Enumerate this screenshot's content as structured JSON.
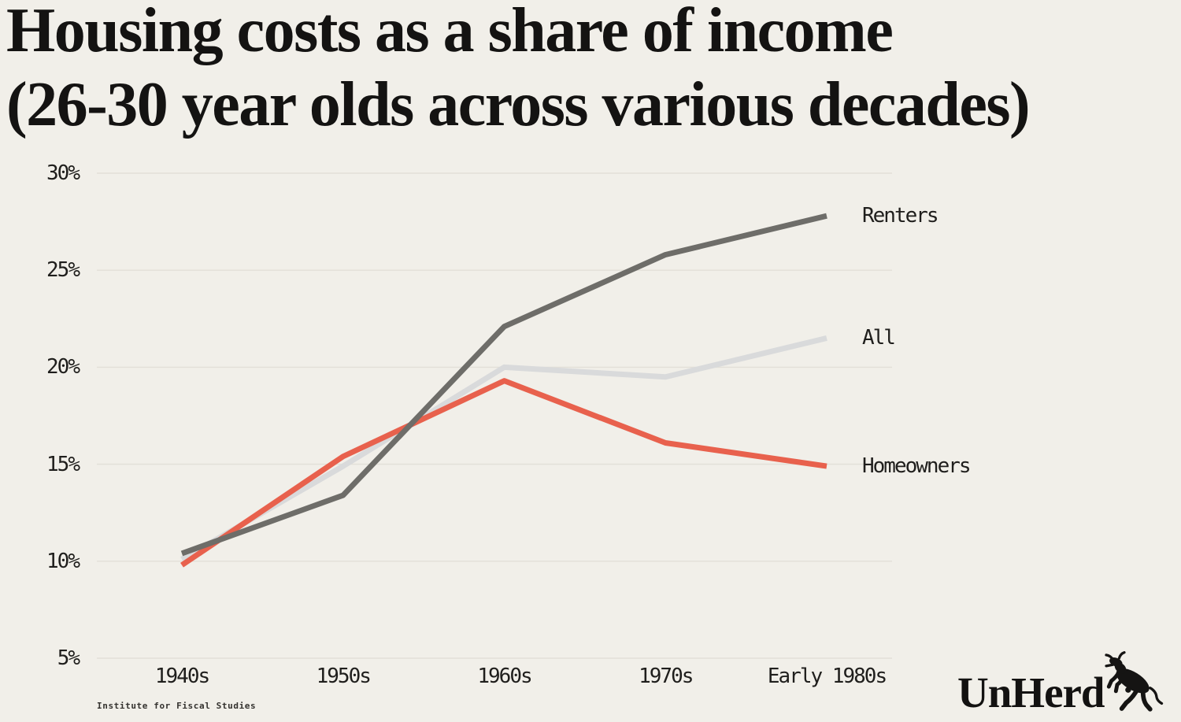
{
  "title": {
    "line1": "Housing costs as a share of income",
    "line2": "(26-30 year olds across various decades)"
  },
  "source": "Institute for Fiscal Studies",
  "logo": {
    "text": "UnHerd",
    "icon": "cow-icon"
  },
  "colors": {
    "background": "#f1efe9",
    "title_text": "#141312",
    "grid": "#e2dfd8",
    "tick_text": "#1f1e1c",
    "renters": "#6e6d69",
    "all": "#d9dadb",
    "homeowners": "#e8614d"
  },
  "chart_data": {
    "type": "line",
    "title": "Housing costs as a share of income (26-30 year olds across various decades)",
    "categories": [
      "1940s",
      "1950s",
      "1960s",
      "1970s",
      "Early 1980s"
    ],
    "series": [
      {
        "name": "Renters",
        "color_key": "renters",
        "values": [
          10.4,
          13.4,
          22.1,
          25.8,
          27.8
        ]
      },
      {
        "name": "All",
        "color_key": "all",
        "values": [
          10.1,
          14.9,
          20.0,
          19.5,
          21.5
        ]
      },
      {
        "name": "Homeowners",
        "color_key": "homeowners",
        "values": [
          9.8,
          15.4,
          19.3,
          16.1,
          14.9
        ]
      }
    ],
    "z_order": [
      "All",
      "Homeowners",
      "Renters"
    ],
    "y_ticks": [
      30,
      25,
      20,
      15,
      10,
      5
    ],
    "y_tick_suffix": "%",
    "ylim": [
      5,
      30
    ],
    "xlabel": "",
    "ylabel": "",
    "grid": "horizontal",
    "legend_position": "right-of-line-ends"
  }
}
